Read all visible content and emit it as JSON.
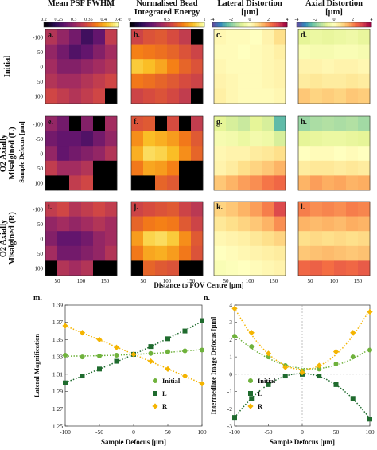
{
  "figure": {
    "column_titles": [
      "Mean PSF FWHMₓᵧ",
      "Normalised Bead Integrated Energy",
      "Lateral Distortion",
      "Axial Distortion"
    ],
    "column_title_lines": [
      [
        "Mean PSF FWHM",
        "xy"
      ],
      [
        "Normalised Bead",
        "Integrated Energy"
      ],
      [
        "Lateral Distortion",
        "[μm]"
      ],
      [
        "Axial Distortion",
        "[μm]"
      ]
    ],
    "row_titles": [
      "Initial",
      "O2 Axially Misalgined (L)",
      "O2 Axially Misalgined (R)"
    ],
    "row_title_lines": [
      [
        "Initial"
      ],
      [
        "O2 Axially",
        "Misalgined (L)"
      ],
      [
        "O2 Axially",
        "Misalgined (R)"
      ]
    ],
    "panel_labels": [
      "a.",
      "b.",
      "c.",
      "d.",
      "e.",
      "f.",
      "g.",
      "h.",
      "i.",
      "j.",
      "k.",
      "l."
    ],
    "shared_ylabel": "Sample Defocus [μm]",
    "shared_xlabel": "Distance to FOV Centre [μm]",
    "colorbars": [
      {
        "ticks": [
          "0.2",
          "0.25",
          "0.3",
          "0.35",
          "0.4",
          "0.45"
        ],
        "range": [
          0.2,
          0.45
        ],
        "colormap": "inferno"
      },
      {
        "ticks": [
          "0",
          "0.5",
          "1"
        ],
        "range": [
          0,
          1
        ],
        "colormap": "inferno"
      },
      {
        "ticks": [
          "-4",
          "-2",
          "0",
          "2",
          "4"
        ],
        "range": [
          -4,
          4
        ],
        "colormap": "spectral_r"
      },
      {
        "ticks": [
          "-4",
          "-2",
          "0",
          "2",
          "4"
        ],
        "range": [
          -4,
          4
        ],
        "colormap": "spectral_r"
      }
    ],
    "heatmap_y_ticks": [
      "-100",
      "-50",
      "0",
      "50",
      "100"
    ],
    "heatmap_x_ticks": [
      "50",
      "100",
      "150"
    ]
  },
  "chart_data": [
    {
      "type": "heatmap",
      "panels": "a-l",
      "note_values": "approximate, read from colour",
      "rows_y": [
        -100,
        -50,
        0,
        50,
        100
      ],
      "cols_x": [
        25,
        50,
        75,
        100,
        125,
        150
      ],
      "grid": {
        "a": [
          [
            0.32,
            0.3,
            0.28,
            0.25,
            0.27,
            0.33
          ],
          [
            0.3,
            0.28,
            0.26,
            0.27,
            0.29,
            0.31
          ],
          [
            0.31,
            0.29,
            0.29,
            0.3,
            0.31,
            0.32
          ],
          [
            0.32,
            0.31,
            0.31,
            0.32,
            0.33,
            0.34
          ],
          [
            0.34,
            0.33,
            0.32,
            0.33,
            0.34,
            null
          ]
        ],
        "b": [
          [
            0.55,
            0.6,
            0.62,
            0.58,
            0.52,
            null
          ],
          [
            0.72,
            0.7,
            0.68,
            0.65,
            0.6,
            0.55
          ],
          [
            0.88,
            0.85,
            0.8,
            0.72,
            0.65,
            0.6
          ],
          [
            0.7,
            0.68,
            0.65,
            0.62,
            0.58,
            0.55
          ],
          [
            0.55,
            0.58,
            0.6,
            0.57,
            0.52,
            null
          ]
        ],
        "c": [
          [
            0.2,
            0.1,
            0.1,
            0.0,
            0.3,
            0.8
          ],
          [
            0.1,
            0.1,
            0.0,
            0.1,
            0.2,
            0.4
          ],
          [
            0.2,
            0.1,
            0.1,
            0.1,
            0.2,
            0.3
          ],
          [
            0.3,
            0.2,
            0.1,
            0.1,
            0.2,
            0.3
          ],
          [
            0.4,
            0.2,
            0.1,
            0.1,
            0.1,
            0.2
          ]
        ],
        "d": [
          [
            -0.8,
            -0.6,
            -0.7,
            -0.6,
            -0.5,
            -0.7
          ],
          [
            -0.2,
            -0.3,
            -0.3,
            -0.2,
            -0.2,
            -0.3
          ],
          [
            0.3,
            0.3,
            0.2,
            0.3,
            0.3,
            0.2
          ],
          [
            0.5,
            0.6,
            0.5,
            0.5,
            0.6,
            0.5
          ],
          [
            1.2,
            1.0,
            1.1,
            1.0,
            1.2,
            1.1
          ]
        ],
        "e": [
          [
            0.3,
            0.28,
            null,
            0.29,
            null,
            0.31
          ],
          [
            0.28,
            0.27,
            0.27,
            0.26,
            0.28,
            0.3
          ],
          [
            0.3,
            0.27,
            0.28,
            0.29,
            0.3,
            0.32
          ],
          [
            0.33,
            0.31,
            0.31,
            0.32,
            null,
            null
          ],
          [
            null,
            null,
            0.33,
            0.34,
            null,
            null
          ]
        ],
        "f": [
          [
            0.6,
            0.62,
            null,
            0.58,
            null,
            0.52
          ],
          [
            0.75,
            0.85,
            0.82,
            0.78,
            0.7,
            0.62
          ],
          [
            0.82,
            0.92,
            0.9,
            0.85,
            0.75,
            0.65
          ],
          [
            0.7,
            0.8,
            0.78,
            0.72,
            null,
            null
          ],
          [
            null,
            null,
            0.65,
            0.62,
            null,
            null
          ]
        ],
        "g": [
          [
            -0.8,
            -1.0,
            -1.2,
            -0.8,
            -1.0,
            -2.5
          ],
          [
            -0.3,
            -0.4,
            -0.6,
            -0.4,
            -0.5,
            -1.0
          ],
          [
            0.2,
            0.3,
            0.3,
            0.5,
            0.6,
            0.8
          ],
          [
            0.3,
            0.5,
            0.8,
            1.0,
            1.2,
            1.5
          ],
          [
            1.2,
            1.5,
            1.8,
            2.0,
            2.3,
            2.5
          ]
        ],
        "h": [
          [
            -1.8,
            -1.6,
            -1.5,
            -1.6,
            -1.5,
            -1.7
          ],
          [
            -0.8,
            -0.7,
            -0.6,
            -0.6,
            -0.7,
            -0.8
          ],
          [
            0.0,
            0.1,
            0.1,
            0.0,
            0.1,
            0.0
          ],
          [
            0.5,
            0.6,
            0.6,
            0.5,
            0.6,
            0.5
          ],
          [
            1.5,
            1.8,
            1.6,
            1.7,
            1.5,
            1.6
          ]
        ],
        "i": [
          [
            0.33,
            0.34,
            0.32,
            0.33,
            0.34,
            0.33
          ],
          [
            0.3,
            0.31,
            0.3,
            0.31,
            0.32,
            0.31
          ],
          [
            0.29,
            0.27,
            0.27,
            0.28,
            0.3,
            0.31
          ],
          [
            0.31,
            0.28,
            0.28,
            0.29,
            0.3,
            0.32
          ],
          [
            null,
            0.32,
            0.31,
            0.32,
            null,
            null
          ]
        ],
        "j": [
          [
            0.55,
            0.58,
            0.6,
            0.62,
            0.55,
            0.5
          ],
          [
            0.65,
            0.7,
            0.72,
            0.7,
            0.62,
            0.55
          ],
          [
            0.78,
            0.9,
            0.92,
            0.88,
            0.75,
            0.62
          ],
          [
            0.7,
            0.8,
            0.82,
            0.78,
            0.7,
            0.6
          ],
          [
            null,
            0.65,
            0.62,
            0.6,
            null,
            null
          ]
        ],
        "k": [
          [
            1.0,
            1.2,
            1.5,
            1.8,
            2.2,
            3.0
          ],
          [
            0.6,
            0.8,
            1.0,
            1.2,
            1.5,
            2.0
          ],
          [
            0.2,
            0.3,
            0.4,
            0.6,
            0.8,
            1.0
          ],
          [
            0.0,
            0.1,
            0.2,
            0.3,
            0.4,
            0.5
          ],
          [
            -0.2,
            -0.1,
            0.0,
            0.1,
            0.2,
            0.3
          ]
        ],
        "l": [
          [
            2.2,
            2.0,
            2.1,
            2.0,
            2.2,
            2.1
          ],
          [
            1.5,
            1.4,
            1.5,
            1.4,
            1.6,
            1.5
          ],
          [
            0.8,
            0.9,
            0.8,
            0.9,
            0.8,
            0.9
          ],
          [
            1.2,
            1.3,
            1.4,
            1.3,
            1.2,
            1.3
          ],
          [
            2.5,
            2.6,
            2.4,
            2.6,
            2.5,
            2.7
          ]
        ]
      }
    },
    {
      "type": "scatter",
      "panel": "m.",
      "xlabel": "Sample Defocus [μm]",
      "ylabel": "Lateral Magnification",
      "xlim": [
        -100,
        100
      ],
      "ylim": [
        1.25,
        1.39
      ],
      "x_ticks": [
        -100,
        -50,
        0,
        50,
        100
      ],
      "y_ticks": [
        1.25,
        1.27,
        1.29,
        1.31,
        1.33,
        1.35,
        1.37,
        1.39
      ],
      "legend": "lower-right",
      "series": [
        {
          "name": "Initial",
          "color": "#6fb23c",
          "marker": "circle",
          "x": [
            -100,
            -75,
            -50,
            -25,
            0,
            25,
            50,
            75,
            100
          ],
          "y": [
            1.332,
            1.33,
            1.331,
            1.332,
            1.333,
            1.334,
            1.336,
            1.337,
            1.338
          ]
        },
        {
          "name": "L",
          "color": "#1f6b2e",
          "marker": "square",
          "x": [
            -100,
            -75,
            -50,
            -25,
            0,
            25,
            50,
            75,
            100
          ],
          "y": [
            1.3,
            1.308,
            1.316,
            1.325,
            1.333,
            1.342,
            1.351,
            1.36,
            1.372
          ]
        },
        {
          "name": "R",
          "color": "#f4b400",
          "marker": "diamond",
          "x": [
            -100,
            -75,
            -50,
            -25,
            0,
            25,
            50,
            75,
            100
          ],
          "y": [
            1.366,
            1.358,
            1.35,
            1.341,
            1.333,
            1.325,
            1.316,
            1.308,
            1.299
          ]
        }
      ]
    },
    {
      "type": "scatter",
      "panel": "n.",
      "xlabel": "Sample Defocus [μm]",
      "ylabel": "Intermediate Image Defocus [μm]",
      "xlim": [
        -100,
        100
      ],
      "ylim": [
        -3,
        4
      ],
      "x_ticks": [
        -100,
        -50,
        0,
        50,
        100
      ],
      "y_ticks": [
        -3,
        -2,
        -1,
        0,
        1,
        2,
        3,
        4
      ],
      "legend": "lower-left",
      "series": [
        {
          "name": "Initial",
          "color": "#6fb23c",
          "marker": "circle",
          "x": [
            -100,
            -75,
            -50,
            -25,
            0,
            25,
            50,
            75,
            100
          ],
          "y": [
            2.2,
            1.6,
            1.0,
            0.5,
            0.2,
            0.3,
            0.6,
            1.0,
            1.4
          ]
        },
        {
          "name": "L",
          "color": "#1f6b2e",
          "marker": "square",
          "x": [
            -100,
            -75,
            -50,
            -25,
            0,
            25,
            50,
            75,
            100
          ],
          "y": [
            -2.5,
            -1.4,
            -0.6,
            -0.1,
            0.0,
            -0.1,
            -0.6,
            -1.4,
            -2.6
          ]
        },
        {
          "name": "R",
          "color": "#f4b400",
          "marker": "diamond",
          "x": [
            -100,
            -75,
            -50,
            -25,
            0,
            25,
            50,
            75,
            100
          ],
          "y": [
            3.8,
            2.4,
            1.2,
            0.4,
            0.1,
            0.5,
            1.3,
            2.4,
            3.6
          ]
        }
      ]
    }
  ]
}
